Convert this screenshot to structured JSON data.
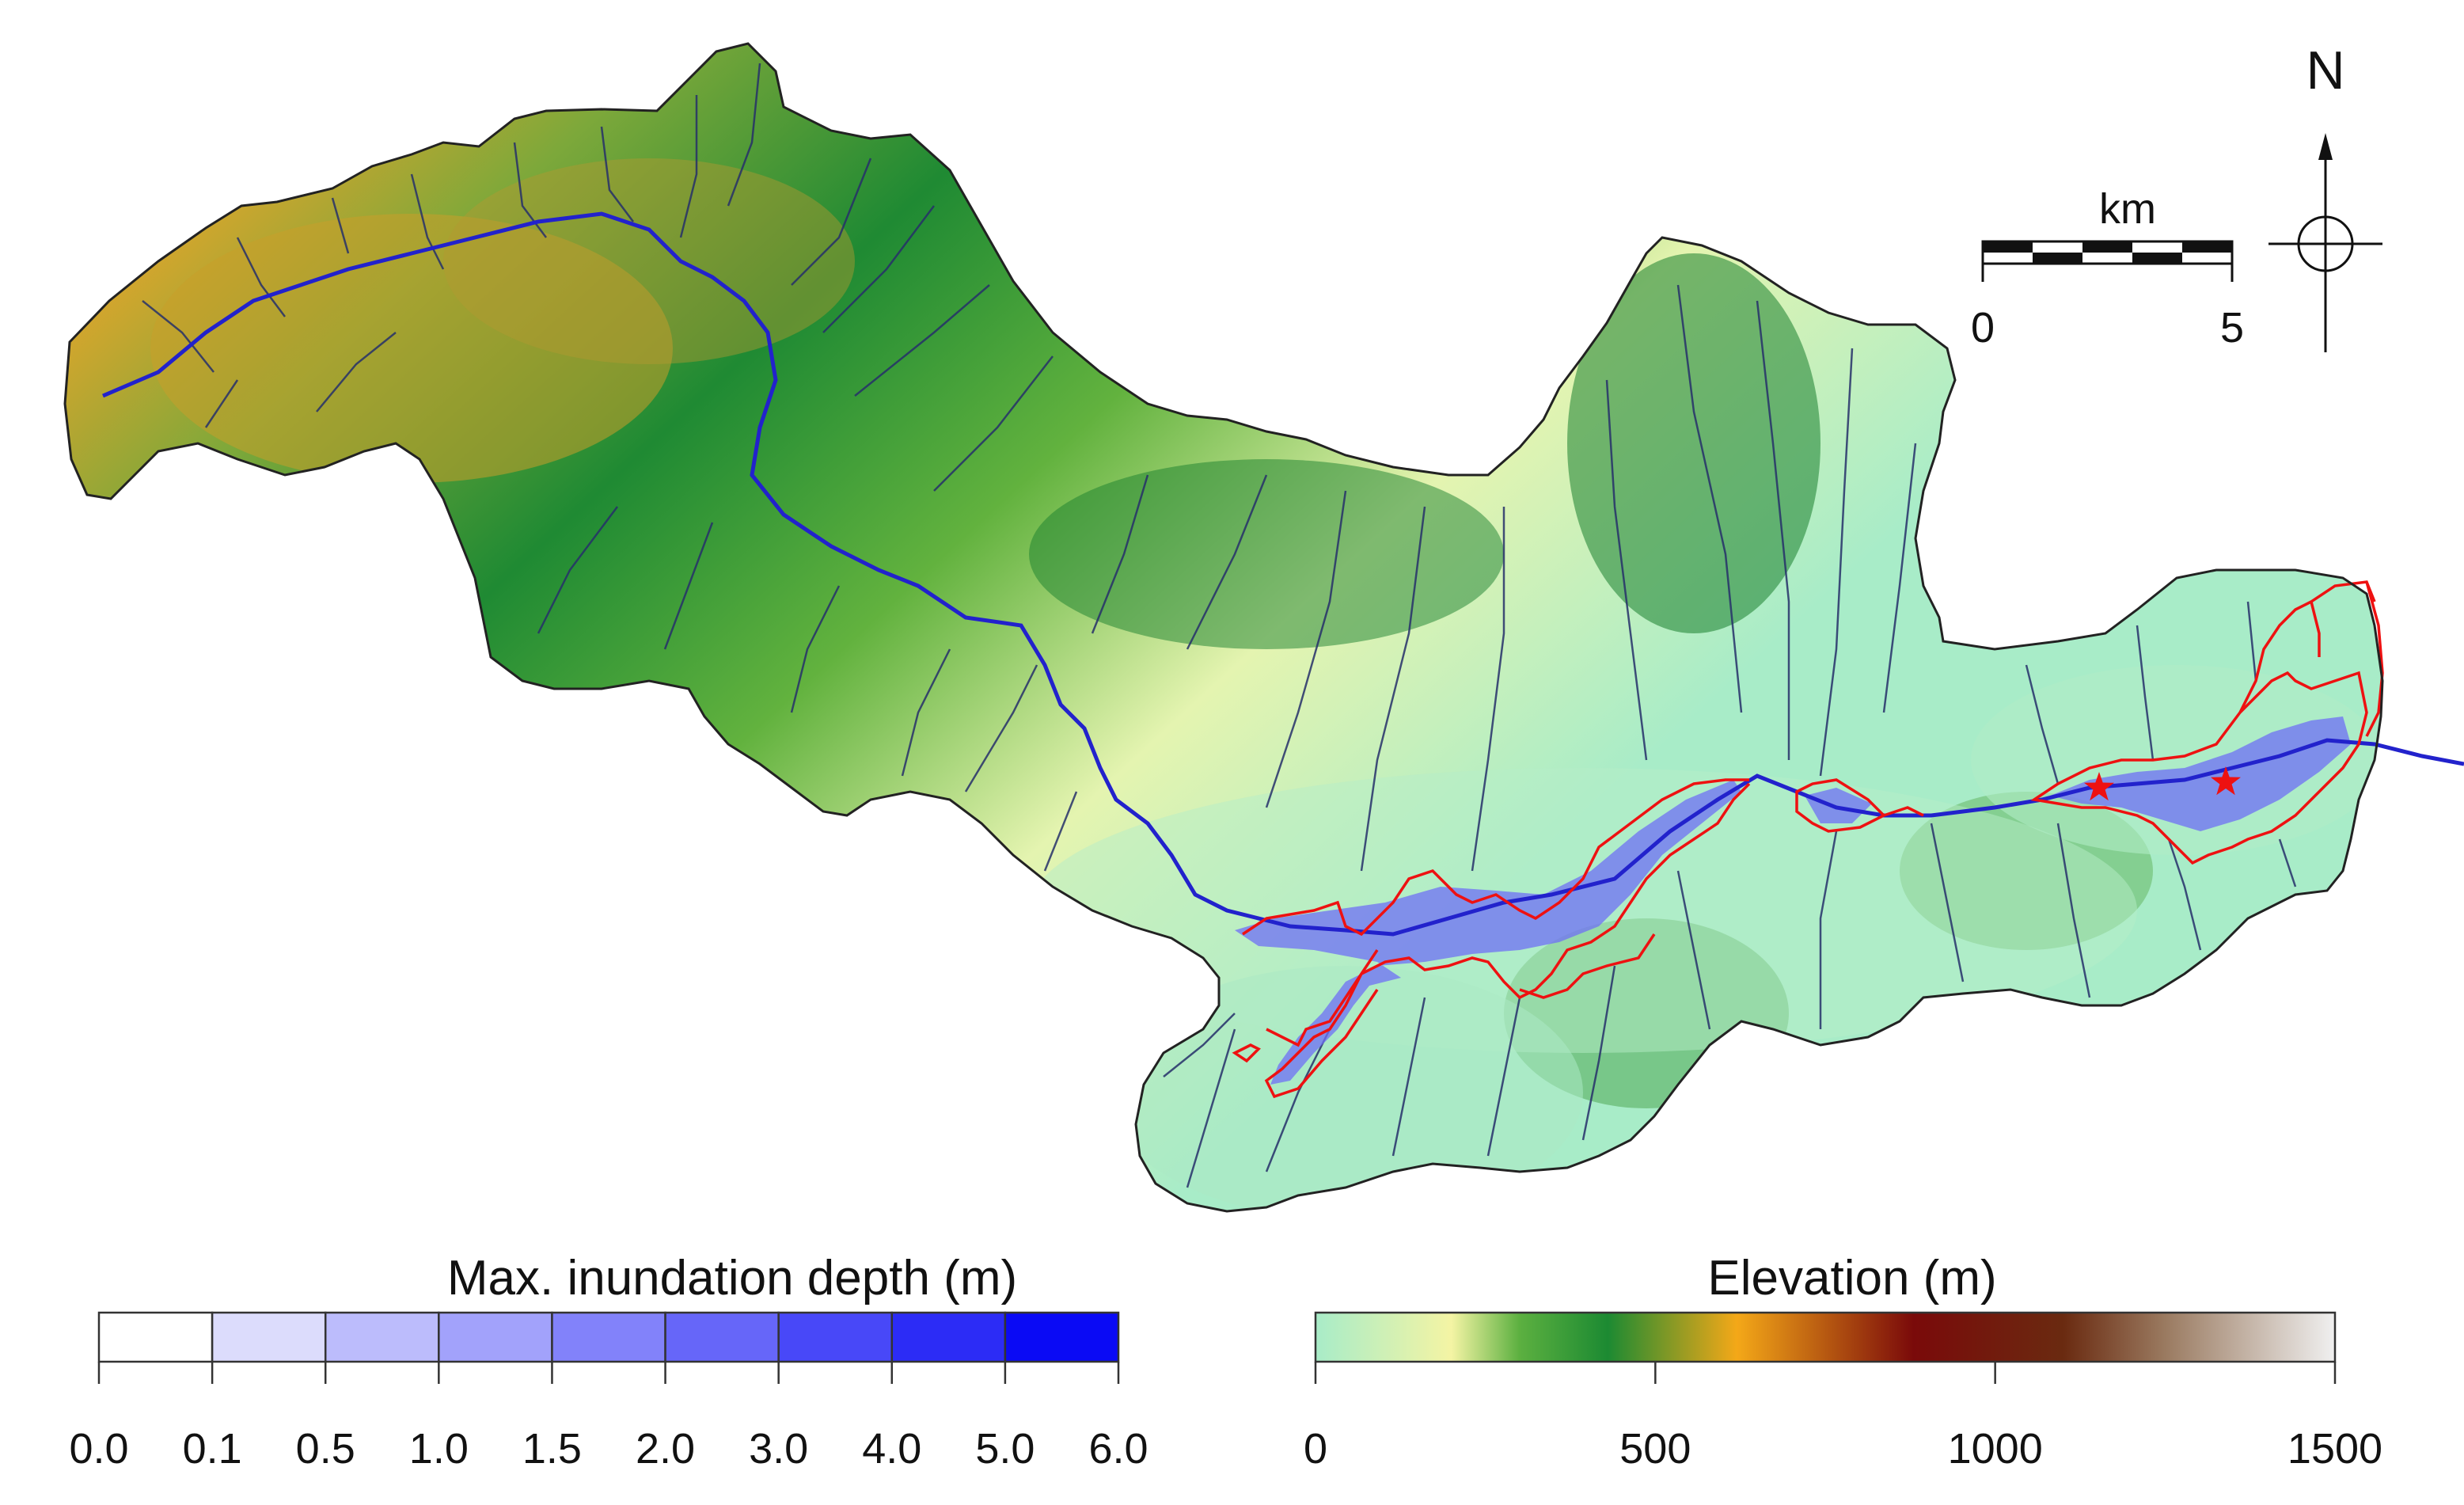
{
  "north_arrow": {
    "label": "N"
  },
  "scale_bar": {
    "unit": "km",
    "start_label": "0",
    "end_label": "5"
  },
  "legend_depth": {
    "title": "Max. inundation depth (m)",
    "breaks": [
      "0.0",
      "0.1",
      "0.5",
      "1.0",
      "1.5",
      "2.0",
      "3.0",
      "4.0",
      "5.0",
      "6.0"
    ],
    "colors": [
      "#ffffff",
      "#dcdcfc",
      "#bcbcfc",
      "#a2a2fb",
      "#8282fa",
      "#6666f9",
      "#4848f8",
      "#2c2cf6",
      "#0a0af5"
    ]
  },
  "legend_elevation": {
    "title": "Elevation (m)",
    "ticks": [
      "0",
      "500",
      "1000",
      "1500"
    ],
    "tick_values": [
      0,
      500,
      1000,
      1500
    ],
    "range": [
      0,
      1500
    ],
    "stops": [
      {
        "value": 0,
        "color": "#a8ecc8"
      },
      {
        "value": 200,
        "color": "#f4f4a4"
      },
      {
        "value": 300,
        "color": "#5cb040"
      },
      {
        "value": 430,
        "color": "#1c8a32"
      },
      {
        "value": 620,
        "color": "#f4a818"
      },
      {
        "value": 880,
        "color": "#7a0a0a"
      },
      {
        "value": 1100,
        "color": "#6a2a10"
      },
      {
        "value": 1250,
        "color": "#9a7a60"
      },
      {
        "value": 1500,
        "color": "#f0f0f0"
      }
    ]
  },
  "colors": {
    "boundary": "#222222",
    "river": "#2222cc",
    "stream": "#26306a",
    "flood_outline": "#ee1111",
    "star": "#ee1111"
  }
}
